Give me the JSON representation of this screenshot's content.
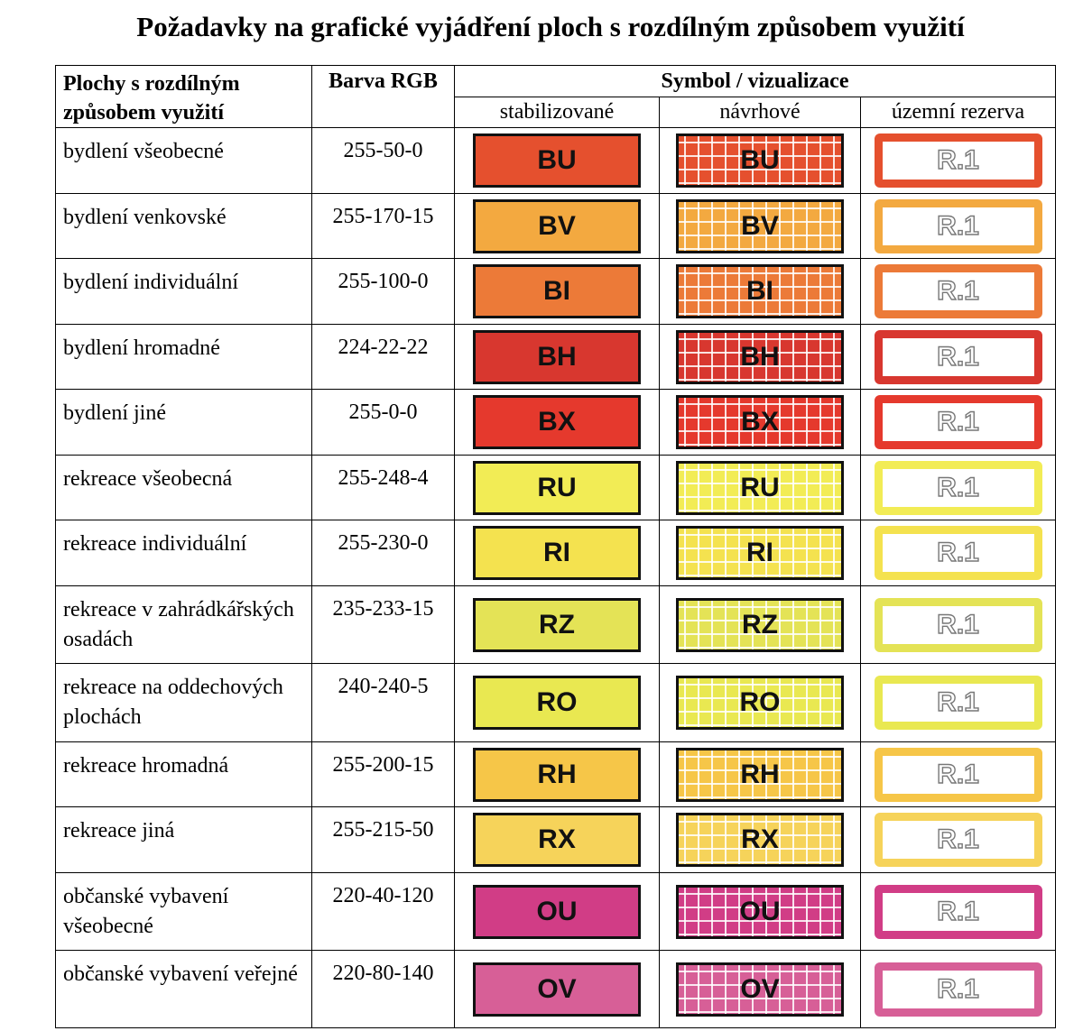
{
  "title": "Požadavky na grafické vyjádření ploch s rozdílným způsobem využití",
  "table": {
    "headers": {
      "name": "Plochy s rozdílným způsobem využití",
      "rgb": "Barva RGB",
      "symbol": "Symbol / vizualizace",
      "stabilized": "stabilizované",
      "proposed": "návrhové",
      "reserve": "územní rezerva"
    },
    "rows": [
      {
        "name": "bydlení všeobecné",
        "rgb": "255-50-0",
        "code": "BU",
        "reserve": "R.1",
        "color": "#E5502E"
      },
      {
        "name": "bydlení venkovské",
        "rgb": "255-170-15",
        "code": "BV",
        "reserve": "R.1",
        "color": "#F3A940"
      },
      {
        "name": "bydlení individuální",
        "rgb": "255-100-0",
        "code": "BI",
        "reserve": "R.1",
        "color": "#EC7A38"
      },
      {
        "name": "bydlení hromadné",
        "rgb": "224-22-22",
        "code": "BH",
        "reserve": "R.1",
        "color": "#D8372F"
      },
      {
        "name": "bydlení jiné",
        "rgb": "255-0-0",
        "code": "BX",
        "reserve": "R.1",
        "color": "#E5392D"
      },
      {
        "name": "rekreace všeobecná",
        "rgb": "255-248-4",
        "code": "RU",
        "reserve": "R.1",
        "color": "#F2EC55"
      },
      {
        "name": "rekreace individuální",
        "rgb": "255-230-0",
        "code": "RI",
        "reserve": "R.1",
        "color": "#F4E24F"
      },
      {
        "name": "rekreace v zahrádkářských osadách",
        "rgb": "235-233-15",
        "code": "RZ",
        "reserve": "R.1",
        "color": "#E4E356"
      },
      {
        "name": "rekreace na oddechových plochách",
        "rgb": "240-240-5",
        "code": "RO",
        "reserve": "R.1",
        "color": "#E9E851"
      },
      {
        "name": "rekreace hromadná",
        "rgb": "255-200-15",
        "code": "RH",
        "reserve": "R.1",
        "color": "#F6C648"
      },
      {
        "name": "rekreace jiná",
        "rgb": "255-215-50",
        "code": "RX",
        "reserve": "R.1",
        "color": "#F6D35A"
      },
      {
        "name": "občanské vybavení všeobecné",
        "rgb": "220-40-120",
        "code": "OU",
        "reserve": "R.1",
        "color": "#D13D86"
      },
      {
        "name": "občanské vybavení veřejné",
        "rgb": "220-80-140",
        "code": "OV",
        "reserve": "R.1",
        "color": "#D75F97"
      }
    ]
  }
}
